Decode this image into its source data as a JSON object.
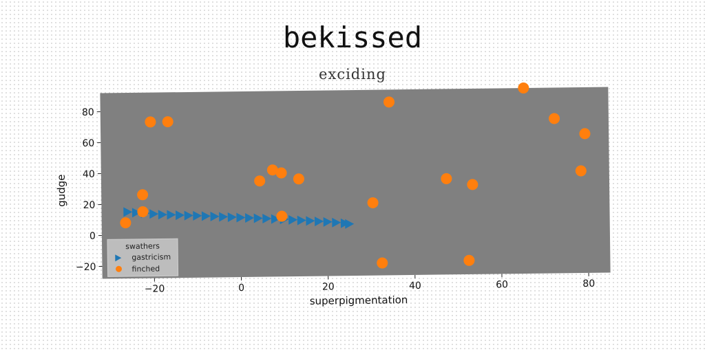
{
  "chart_data": {
    "type": "scatter",
    "title": "bekissed",
    "subtitle": "exciding",
    "xlabel": "superpigmentation",
    "ylabel": "gudge",
    "xlim": [
      -32,
      85
    ],
    "ylim": [
      -28,
      92
    ],
    "xticks": [
      -20,
      0,
      20,
      40,
      60,
      80
    ],
    "yticks": [
      -20,
      0,
      20,
      40,
      60,
      80
    ],
    "xtick_labels": [
      "−20",
      "0",
      "20",
      "40",
      "60",
      "80"
    ],
    "ytick_labels": [
      "−20",
      "0",
      "20",
      "40",
      "60",
      "80"
    ],
    "grid": false,
    "legend": {
      "title": "swathers",
      "placement": "lower-left",
      "entries": [
        "gastricism",
        "finched"
      ]
    },
    "series": [
      {
        "name": "gastricism",
        "marker": "triangle-right",
        "color": "#1f77b4",
        "x": [
          -26,
          -24,
          -22,
          -20,
          -18,
          -16,
          -14,
          -12,
          -10,
          -8,
          -6,
          -4,
          -2,
          0,
          2,
          4,
          6,
          8,
          10,
          12,
          14,
          16,
          18,
          20,
          22,
          24,
          25
        ],
        "y": [
          15,
          14.5,
          14,
          13.5,
          13,
          12.8,
          12.5,
          12.2,
          12,
          11.7,
          11.4,
          11.1,
          10.8,
          10.5,
          10.2,
          9.9,
          9.6,
          9.3,
          9,
          8.6,
          8.2,
          7.8,
          7.4,
          7,
          6.5,
          6,
          5.5
        ]
      },
      {
        "name": "finched",
        "marker": "circle",
        "color": "#ff7f0e",
        "x": [
          -26.5,
          -22.5,
          -22.5,
          -20.5,
          -16.5,
          4.5,
          7.5,
          9.5,
          9.5,
          13.5,
          30.5,
          32.5,
          34.5,
          47.5,
          52.5,
          53.5,
          65.5,
          72.5,
          78.5,
          79.5
        ],
        "y": [
          8,
          15,
          26,
          73,
          73,
          34,
          41,
          39,
          11,
          35,
          19,
          -20,
          84,
          34,
          -19,
          30,
          92,
          72,
          38,
          62
        ]
      }
    ]
  }
}
